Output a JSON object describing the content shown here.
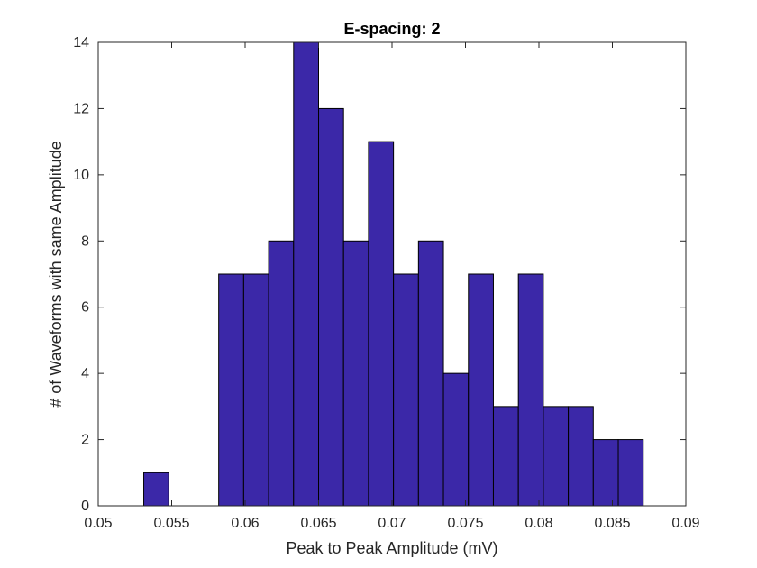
{
  "chart_data": {
    "type": "bar",
    "title": "E-spacing: 2",
    "xlabel": "Peak to Peak Amplitude (mV)",
    "ylabel": "# of Waveforms with same Amplitude",
    "xlim": [
      0.05,
      0.09
    ],
    "ylim": [
      0,
      14
    ],
    "xticks": [
      "0.05",
      "0.055",
      "0.06",
      "0.065",
      "0.07",
      "0.075",
      "0.08",
      "0.085",
      "0.09"
    ],
    "yticks": [
      "0",
      "2",
      "4",
      "6",
      "8",
      "10",
      "12",
      "14"
    ],
    "bin_edges": [
      0.0531,
      0.0548,
      0.0565,
      0.0582,
      0.0599,
      0.0616,
      0.0633,
      0.065,
      0.0667,
      0.0684,
      0.0701,
      0.0718,
      0.0735,
      0.0752,
      0.0769,
      0.0786,
      0.0803,
      0.082,
      0.0837,
      0.0854,
      0.0871
    ],
    "values": [
      1,
      0,
      0,
      7,
      7,
      8,
      14,
      12,
      8,
      11,
      7,
      8,
      4,
      7,
      3,
      7,
      3,
      3,
      2,
      2
    ],
    "grid": false,
    "box": true
  },
  "colors": {
    "bar_fill": "#3b28a8",
    "bar_edge": "#000000",
    "axis": "#262626",
    "background": "#ffffff"
  }
}
